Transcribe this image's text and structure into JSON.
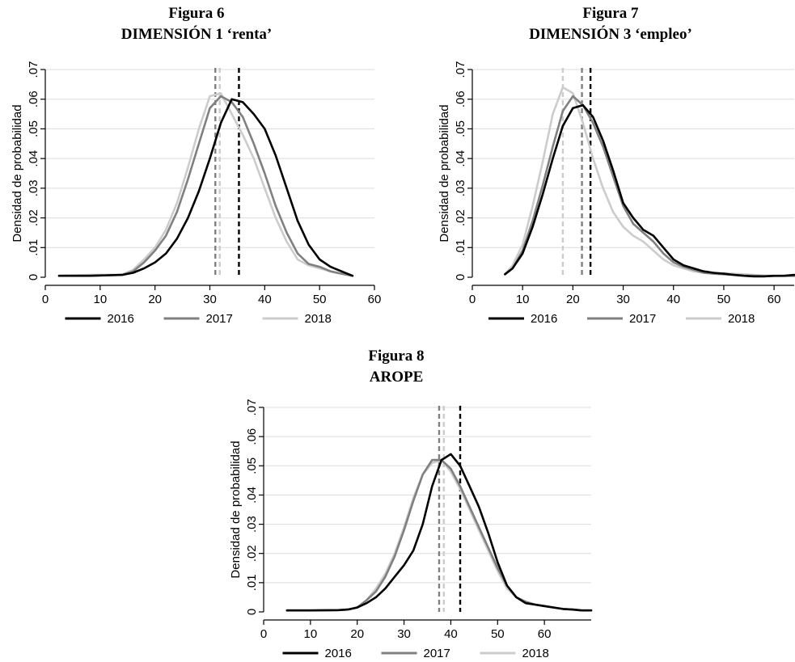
{
  "chart_data": [
    {
      "type": "line",
      "figure_label": "Figura 6",
      "title": "DIMENSIÓN 1 ‘renta’",
      "ylabel": "Densidad de probabilidad",
      "xlabel": "",
      "xlim": [
        0,
        60
      ],
      "ylim": [
        0,
        0.07
      ],
      "xticks": [
        0,
        10,
        20,
        30,
        40,
        50,
        60
      ],
      "yticks": [
        0,
        0.01,
        0.02,
        0.03,
        0.04,
        0.05,
        0.06,
        0.07
      ],
      "ytick_labels": [
        "0",
        ".01",
        ".02",
        ".03",
        ".04",
        ".05",
        ".06",
        ".07"
      ],
      "grid": true,
      "legend": "bottom",
      "means": [
        {
          "series": "2016",
          "x": 35.3
        },
        {
          "series": "2017",
          "x": 31.0
        },
        {
          "series": "2018",
          "x": 31.8
        }
      ],
      "series": [
        {
          "name": "2016",
          "color": "#000000",
          "x": [
            2.5,
            8,
            14,
            16,
            18,
            20,
            22,
            24,
            26,
            28,
            30,
            32,
            34,
            36,
            38,
            40,
            42,
            44,
            46,
            48,
            50,
            52,
            54,
            56
          ],
          "y": [
            0.0005,
            0.0005,
            0.0008,
            0.0015,
            0.003,
            0.005,
            0.008,
            0.013,
            0.02,
            0.029,
            0.04,
            0.052,
            0.06,
            0.059,
            0.055,
            0.05,
            0.041,
            0.03,
            0.019,
            0.011,
            0.006,
            0.0035,
            0.002,
            0.0005
          ]
        },
        {
          "name": "2017",
          "color": "#808080",
          "x": [
            2.5,
            8,
            14,
            16,
            18,
            20,
            22,
            24,
            26,
            28,
            30,
            32,
            34,
            36,
            38,
            40,
            42,
            44,
            46,
            48,
            50,
            52,
            54,
            56
          ],
          "y": [
            0.0005,
            0.0005,
            0.0008,
            0.002,
            0.005,
            0.009,
            0.014,
            0.022,
            0.033,
            0.045,
            0.057,
            0.061,
            0.059,
            0.054,
            0.045,
            0.035,
            0.024,
            0.015,
            0.008,
            0.0045,
            0.0035,
            0.002,
            0.0012,
            0.0005
          ]
        },
        {
          "name": "2018",
          "color": "#cccccc",
          "x": [
            2.5,
            8,
            14,
            16,
            18,
            20,
            22,
            24,
            26,
            28,
            30,
            32,
            34,
            36,
            38,
            40,
            42,
            44,
            46,
            48,
            50,
            52,
            54,
            56
          ],
          "y": [
            0.0005,
            0.0008,
            0.0009,
            0.0025,
            0.006,
            0.01,
            0.016,
            0.025,
            0.037,
            0.05,
            0.061,
            0.062,
            0.055,
            0.048,
            0.04,
            0.03,
            0.02,
            0.012,
            0.006,
            0.004,
            0.003,
            0.002,
            0.0012,
            0.0005
          ]
        }
      ]
    },
    {
      "type": "line",
      "figure_label": "Figura 7",
      "title": "DIMENSIÓN 3 ‘empleo’",
      "ylabel": "Densidad de probabilidad",
      "xlabel": "",
      "xlim": [
        0,
        64
      ],
      "ylim": [
        0,
        0.07
      ],
      "xticks": [
        0,
        10,
        20,
        30,
        40,
        50,
        60
      ],
      "yticks": [
        0,
        0.01,
        0.02,
        0.03,
        0.04,
        0.05,
        0.06,
        0.07
      ],
      "ytick_labels": [
        "0",
        ".01",
        ".02",
        ".03",
        ".04",
        ".05",
        ".06",
        ".07"
      ],
      "grid": true,
      "legend": "bottom",
      "means": [
        {
          "series": "2016",
          "x": 23.5
        },
        {
          "series": "2017",
          "x": 21.8
        },
        {
          "series": "2018",
          "x": 18.0
        }
      ],
      "series": [
        {
          "name": "2016",
          "color": "#000000",
          "x": [
            6.5,
            8,
            10,
            12,
            14,
            16,
            18,
            20,
            22,
            24,
            26,
            28,
            30,
            32,
            34,
            36,
            38,
            40,
            42,
            44,
            46,
            48,
            50,
            52,
            54,
            56,
            58,
            60,
            62,
            64
          ],
          "y": [
            0.001,
            0.003,
            0.008,
            0.017,
            0.028,
            0.04,
            0.051,
            0.057,
            0.058,
            0.054,
            0.046,
            0.036,
            0.025,
            0.02,
            0.016,
            0.014,
            0.01,
            0.006,
            0.004,
            0.003,
            0.002,
            0.0015,
            0.0012,
            0.0008,
            0.0005,
            0.0003,
            0.0003,
            0.0005,
            0.0005,
            0.0008
          ]
        },
        {
          "name": "2017",
          "color": "#808080",
          "x": [
            6.5,
            8,
            10,
            12,
            14,
            16,
            18,
            20,
            22,
            24,
            26,
            28,
            30,
            32,
            34,
            36,
            38,
            40,
            42,
            44,
            46,
            48,
            50,
            52,
            54,
            56,
            58,
            60,
            62,
            64
          ],
          "y": [
            0.001,
            0.003,
            0.009,
            0.019,
            0.031,
            0.044,
            0.056,
            0.061,
            0.058,
            0.052,
            0.044,
            0.034,
            0.024,
            0.018,
            0.015,
            0.012,
            0.008,
            0.005,
            0.0035,
            0.0025,
            0.0015,
            0.0012,
            0.001,
            0.0008,
            0.0006,
            0.0005,
            0.0004,
            0.0004,
            0.0005,
            0.0005
          ]
        },
        {
          "name": "2018",
          "color": "#cccccc",
          "x": [
            6.5,
            8,
            10,
            12,
            14,
            16,
            18,
            20,
            22,
            24,
            26,
            28,
            30,
            32,
            34,
            36,
            38,
            40,
            42,
            44,
            46,
            48,
            50,
            52,
            54,
            56,
            58,
            60,
            62,
            64
          ],
          "y": [
            0.001,
            0.004,
            0.011,
            0.024,
            0.039,
            0.055,
            0.064,
            0.062,
            0.052,
            0.04,
            0.03,
            0.022,
            0.017,
            0.014,
            0.012,
            0.009,
            0.006,
            0.004,
            0.003,
            0.002,
            0.0015,
            0.0012,
            0.0013,
            0.0012,
            0.001,
            0.0008,
            0.0006,
            0.0005,
            0.0004,
            0.0004
          ]
        }
      ]
    },
    {
      "type": "line",
      "figure_label": "Figura 8",
      "title": "AROPE",
      "ylabel": "Densidad de probabilidad",
      "xlabel": "",
      "xlim": [
        0,
        70
      ],
      "ylim": [
        0,
        0.07
      ],
      "xticks": [
        0,
        10,
        20,
        30,
        40,
        50,
        60
      ],
      "yticks": [
        0,
        0.01,
        0.02,
        0.03,
        0.04,
        0.05,
        0.06,
        0.07
      ],
      "ytick_labels": [
        "0",
        ".01",
        ".02",
        ".03",
        ".04",
        ".05",
        ".06",
        ".07"
      ],
      "grid": true,
      "legend": "bottom",
      "means": [
        {
          "series": "2016",
          "x": 42.0
        },
        {
          "series": "2017",
          "x": 37.5
        },
        {
          "series": "2018",
          "x": 38.5
        }
      ],
      "series": [
        {
          "name": "2016",
          "color": "#000000",
          "x": [
            5,
            10,
            16,
            18,
            20,
            22,
            24,
            26,
            28,
            30,
            32,
            34,
            36,
            38,
            40,
            42,
            44,
            46,
            48,
            50,
            52,
            54,
            56,
            58,
            60,
            62,
            64,
            66,
            68,
            70
          ],
          "y": [
            0.0005,
            0.0005,
            0.0006,
            0.0008,
            0.0015,
            0.003,
            0.005,
            0.008,
            0.012,
            0.016,
            0.021,
            0.03,
            0.043,
            0.052,
            0.054,
            0.05,
            0.043,
            0.036,
            0.027,
            0.017,
            0.009,
            0.005,
            0.003,
            0.0025,
            0.002,
            0.0015,
            0.001,
            0.0008,
            0.0005,
            0.0005
          ]
        },
        {
          "name": "2017",
          "color": "#808080",
          "x": [
            5,
            10,
            16,
            18,
            20,
            22,
            24,
            26,
            28,
            30,
            32,
            34,
            36,
            38,
            40,
            42,
            44,
            46,
            48,
            50,
            52,
            54,
            56,
            58,
            60,
            62,
            64,
            66,
            68,
            70
          ],
          "y": [
            0.0005,
            0.0005,
            0.0006,
            0.0008,
            0.0015,
            0.004,
            0.007,
            0.012,
            0.019,
            0.028,
            0.038,
            0.047,
            0.052,
            0.052,
            0.049,
            0.043,
            0.036,
            0.029,
            0.022,
            0.015,
            0.009,
            0.005,
            0.0035,
            0.0025,
            0.002,
            0.0015,
            0.001,
            0.0008,
            0.0005,
            0.0005
          ]
        },
        {
          "name": "2018",
          "color": "#cccccc",
          "x": [
            5,
            10,
            16,
            18,
            20,
            22,
            24,
            26,
            28,
            30,
            32,
            34,
            36,
            38,
            40,
            42,
            44,
            46,
            48,
            50,
            52,
            54,
            56,
            58,
            60,
            62,
            64,
            66,
            68,
            70
          ],
          "y": [
            0.0005,
            0.0005,
            0.0006,
            0.0008,
            0.0016,
            0.004,
            0.008,
            0.013,
            0.02,
            0.029,
            0.039,
            0.047,
            0.051,
            0.052,
            0.048,
            0.042,
            0.035,
            0.028,
            0.021,
            0.014,
            0.008,
            0.005,
            0.003,
            0.0025,
            0.002,
            0.0015,
            0.001,
            0.0008,
            0.0005,
            0.0005
          ]
        }
      ]
    }
  ]
}
